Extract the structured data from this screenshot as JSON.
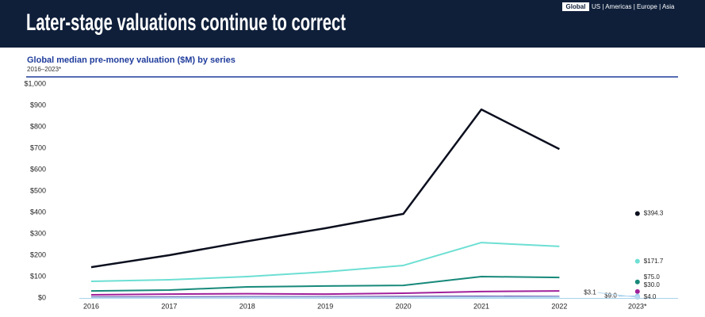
{
  "header": {
    "title": "Later-stage valuations continue to correct"
  },
  "nav": {
    "active": "Global",
    "others": "US | Americas | Europe | Asia"
  },
  "chart_data": {
    "type": "line",
    "title": "Global median pre-money valuation ($M) by series",
    "subtitle": "2016–2023*",
    "categories": [
      "2016",
      "2017",
      "2018",
      "2019",
      "2020",
      "2021",
      "2022",
      "2023*"
    ],
    "ylim": [
      0,
      1000
    ],
    "yticks": [
      {
        "value": 0,
        "label": "$0"
      },
      {
        "value": 100,
        "label": "$100"
      },
      {
        "value": 200,
        "label": "$200"
      },
      {
        "value": 300,
        "label": "$300"
      },
      {
        "value": 400,
        "label": "$400"
      },
      {
        "value": 500,
        "label": "$500"
      },
      {
        "value": 600,
        "label": "$600"
      },
      {
        "value": 700,
        "label": "$700"
      },
      {
        "value": 800,
        "label": "$800"
      },
      {
        "value": 900,
        "label": "$900"
      },
      {
        "value": 1000,
        "label": "$1,000"
      }
    ],
    "series": [
      {
        "color": "#0b0f1e",
        "values": [
          144,
          200,
          265,
          326,
          393,
          881,
          696,
          394.3
        ],
        "value_labels": [
          null,
          null,
          null,
          null,
          null,
          null,
          null,
          "$394.3"
        ]
      },
      {
        "color": "#6ddfd3",
        "values": [
          78,
          85,
          100,
          122,
          152,
          259,
          241,
          171.7
        ],
        "value_labels": [
          null,
          null,
          null,
          null,
          null,
          null,
          null,
          "$171.7"
        ]
      },
      {
        "color": "#17897a",
        "values": [
          33,
          37,
          52,
          56,
          59,
          100,
          96,
          75.0
        ],
        "value_labels": [
          null,
          null,
          null,
          null,
          null,
          null,
          null,
          "$75.0"
        ]
      },
      {
        "color": "#a1209a",
        "values": [
          15,
          18,
          20,
          18,
          22,
          30,
          33,
          30.0
        ],
        "value_labels": [
          null,
          null,
          null,
          null,
          null,
          null,
          null,
          "$30.0"
        ]
      },
      {
        "color": "#4b1a8c",
        "values": [
          4,
          4,
          5,
          5,
          6,
          7,
          6,
          4.0
        ],
        "value_labels": [
          null,
          null,
          null,
          null,
          null,
          null,
          null,
          "$4.0"
        ]
      },
      {
        "color": "#8fc7ea",
        "values": [
          2,
          2,
          3,
          3,
          3,
          4,
          4,
          9.0
        ],
        "value_labels": [
          null,
          null,
          null,
          null,
          null,
          null,
          null,
          "$9.0"
        ]
      },
      {
        "color": "#b8d9f0",
        "values": [
          1,
          1,
          1,
          2,
          2,
          2,
          2,
          3.1
        ],
        "value_labels": [
          null,
          null,
          null,
          null,
          null,
          null,
          null,
          "$3.1"
        ]
      }
    ]
  }
}
